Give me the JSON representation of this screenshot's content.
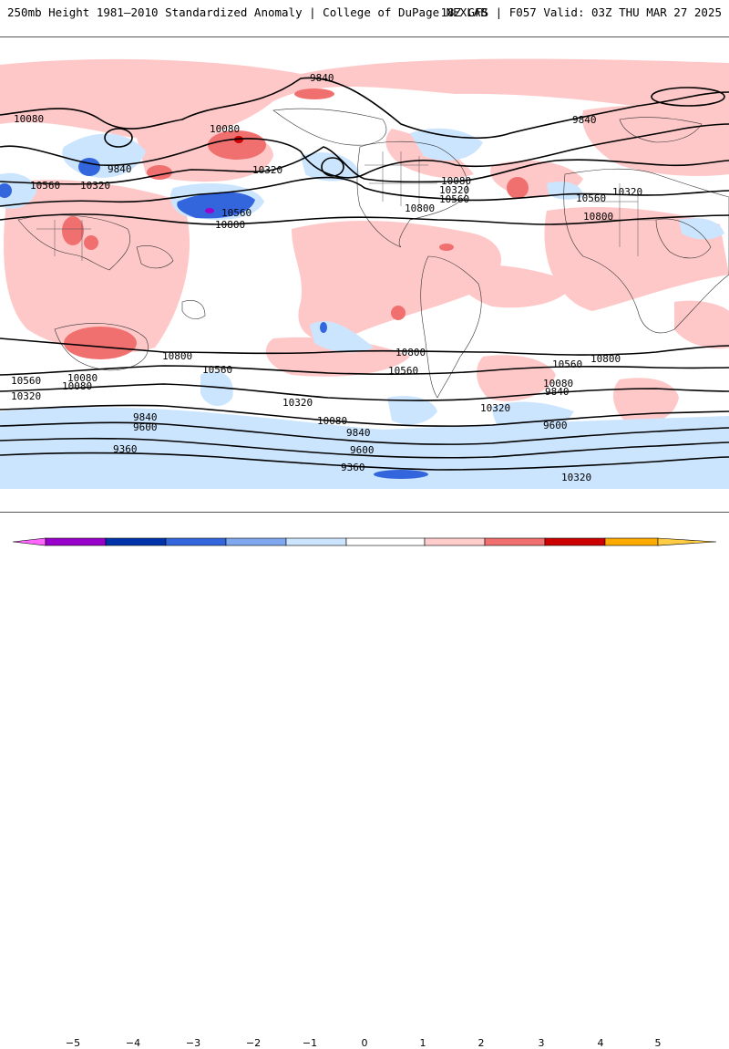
{
  "header": {
    "title": "250mb Height 1981–2010 Standardized Anomaly | College of DuPage NEXLAB",
    "run_info": "18Z GFS | F057 Valid: 03Z THU MAR 27 2025"
  },
  "contour_labels": [
    "9840",
    "10080",
    "10080",
    "9840",
    "10560",
    "10320",
    "10320",
    "10560",
    "10800",
    "10080",
    "10320",
    "10560",
    "10800",
    "9840",
    "10320",
    "10560",
    "10800",
    "10800",
    "10560",
    "10080",
    "10320",
    "9840",
    "9600",
    "9360",
    "10800",
    "10560",
    "10320",
    "10080",
    "9840",
    "9600",
    "9360",
    "10800",
    "10560",
    "10320",
    "10080",
    "9840",
    "9600",
    "10560",
    "10080",
    "10320"
  ],
  "colorbar": {
    "labels": [
      "−5",
      "−4",
      "−3",
      "−2",
      "−1",
      "0",
      "1",
      "2",
      "3",
      "4",
      "5"
    ],
    "colors": {
      "n5": "#ff66ff",
      "n4": "#9900cc",
      "n3": "#0033aa",
      "n2": "#3366dd",
      "n1": "#cce5ff",
      "zero": "#ffffff",
      "p1": "#ffcccc",
      "p2": "#f07070",
      "p3": "#cc0000",
      "p4": "#990000",
      "p5": "#ffaa00"
    }
  }
}
